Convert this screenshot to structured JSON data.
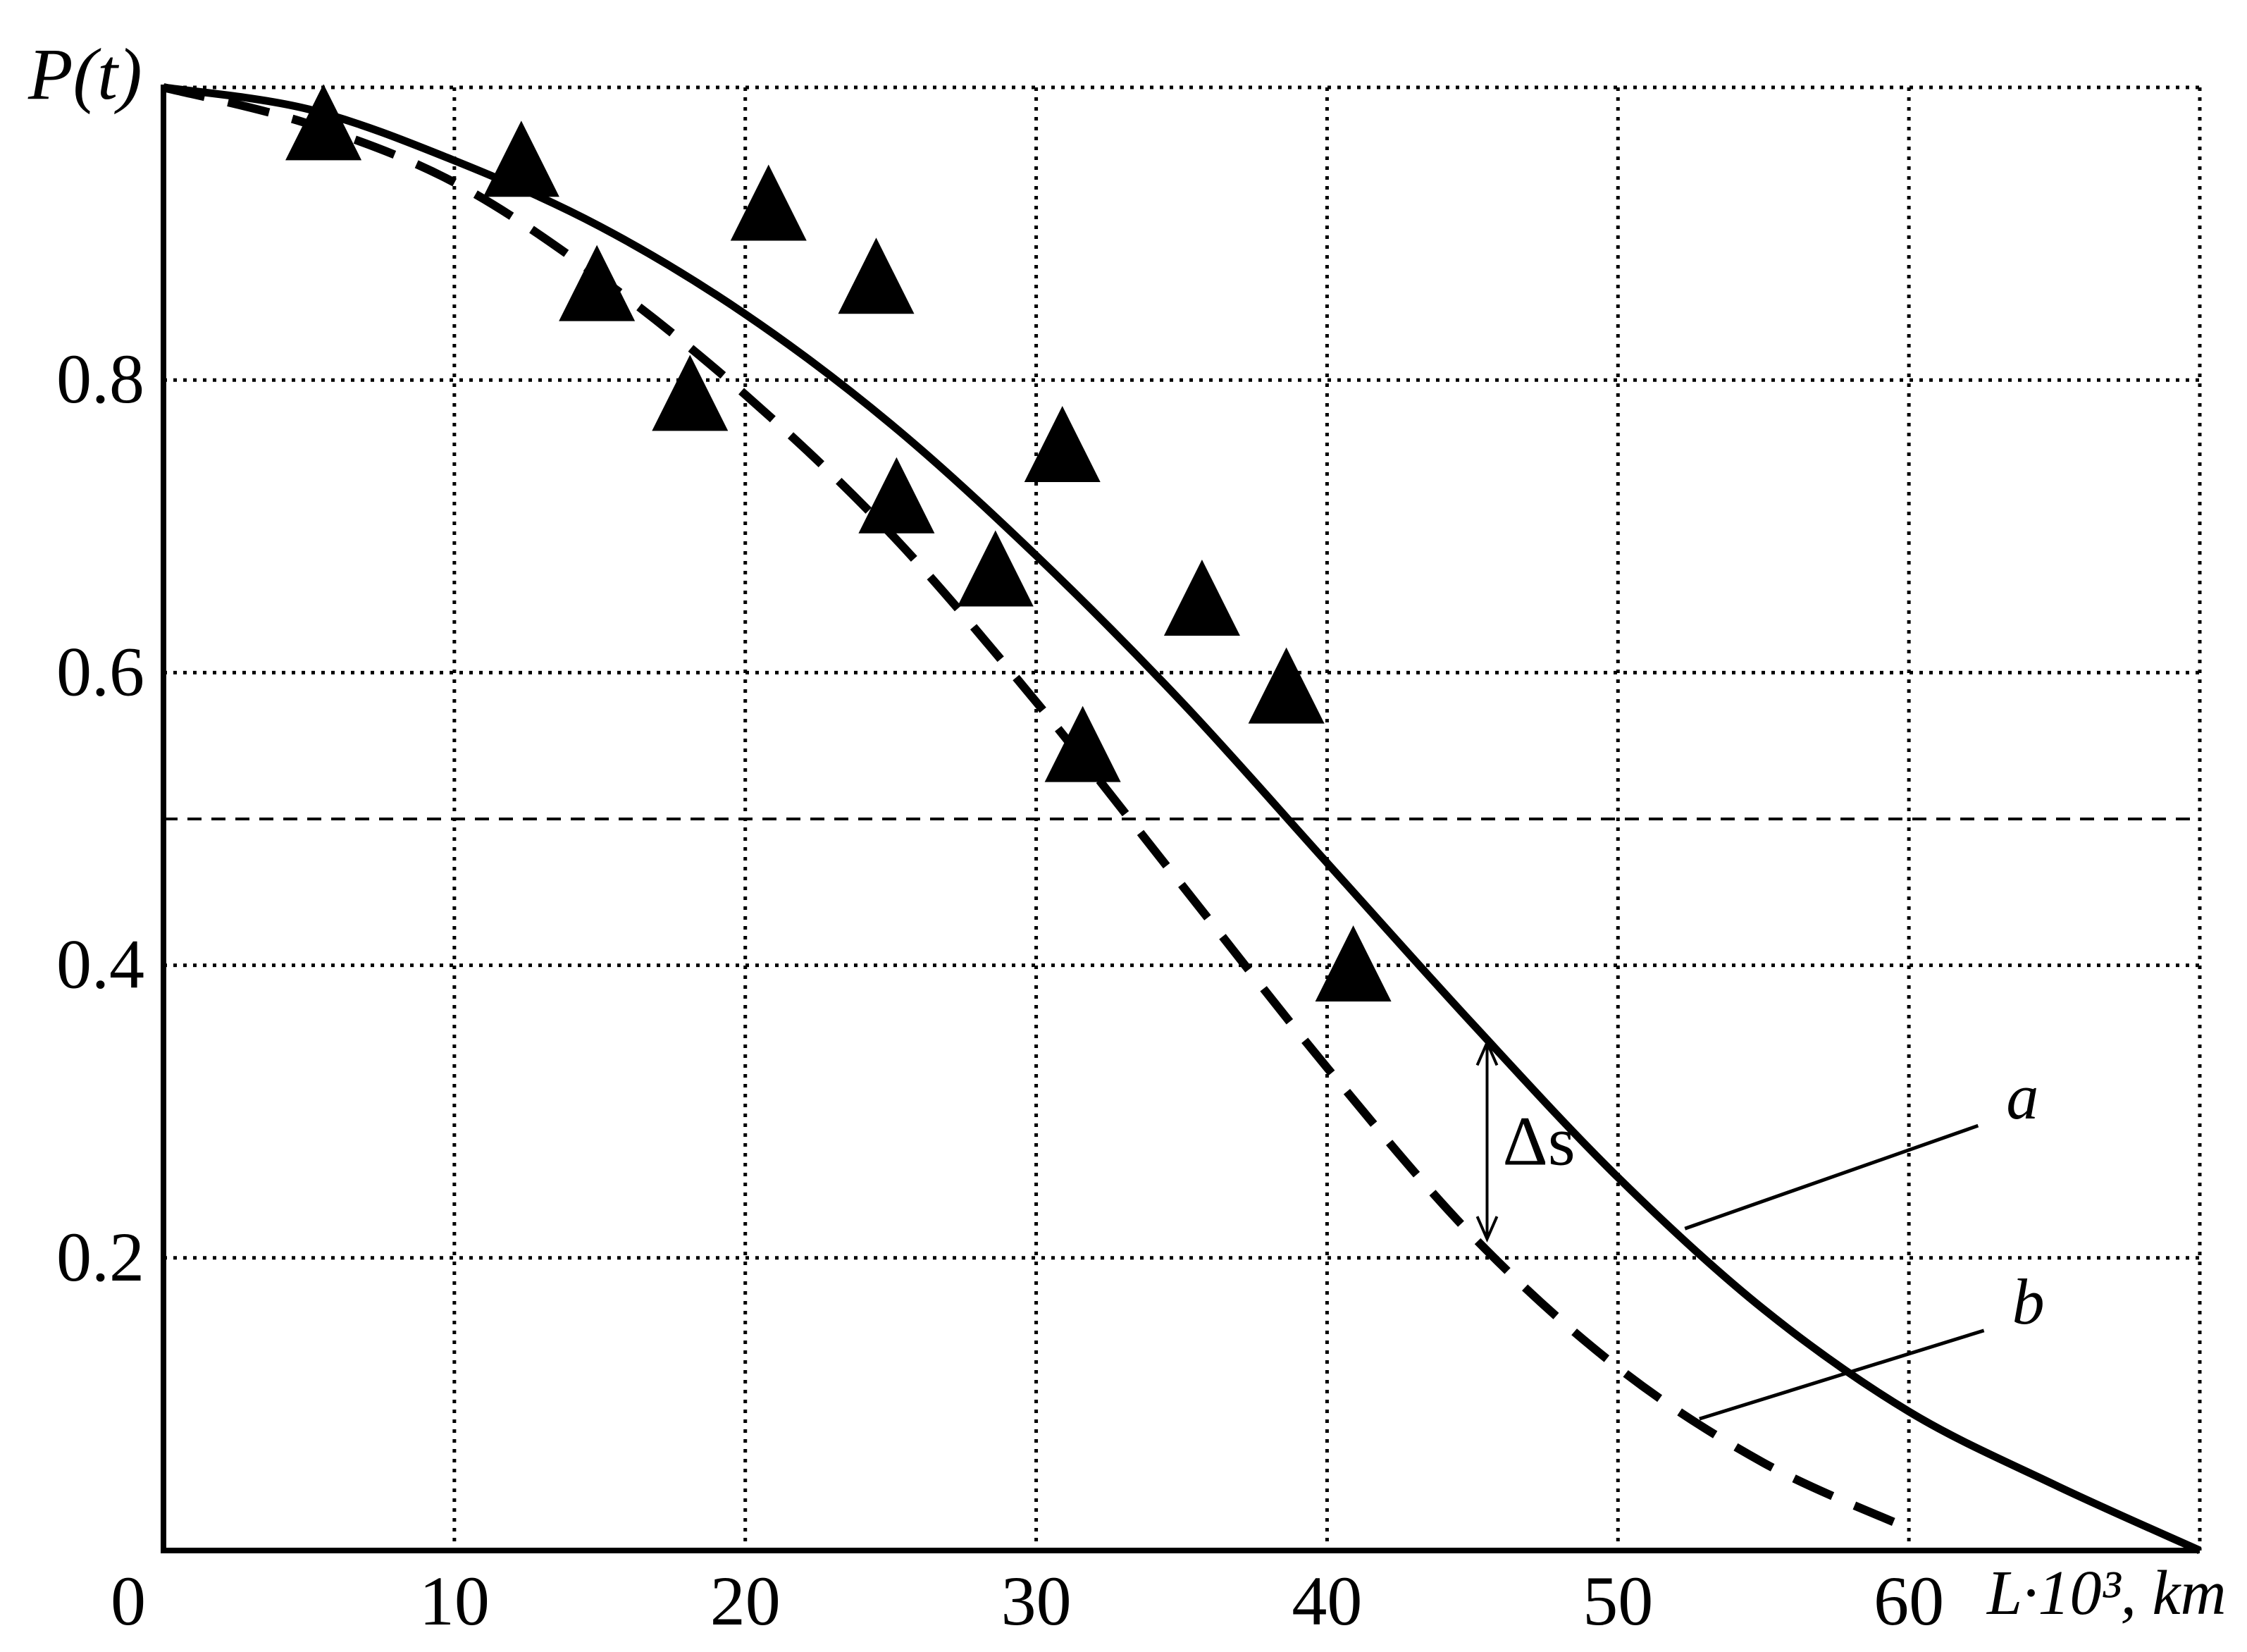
{
  "chart_data": {
    "type": "line",
    "title": "",
    "ylabel": "P(t)",
    "xlabel": "L·10³, km",
    "xlim": [
      0,
      70
    ],
    "ylim": [
      0,
      1.0
    ],
    "x_ticks": [
      0,
      10,
      20,
      30,
      40,
      50,
      60
    ],
    "x_tick_labels": [
      "0",
      "10",
      "20",
      "30",
      "40",
      "50",
      "60"
    ],
    "y_ticks": [
      0.2,
      0.4,
      0.6,
      0.8
    ],
    "y_tick_labels": [
      "0.2",
      "0.4",
      "0.6",
      "0.8"
    ],
    "grid": true,
    "reference_line": {
      "y": 0.5,
      "style": "dashed"
    },
    "series": [
      {
        "name": "a",
        "style": "solid",
        "x": [
          0,
          5,
          10,
          15,
          20,
          25,
          30,
          35,
          40,
          45,
          50,
          55,
          60,
          65,
          70
        ],
        "y": [
          1.0,
          0.985,
          0.95,
          0.905,
          0.845,
          0.77,
          0.68,
          0.58,
          0.47,
          0.36,
          0.255,
          0.165,
          0.095,
          0.045,
          0.0
        ]
      },
      {
        "name": "b",
        "style": "dashed",
        "x": [
          0,
          5,
          10,
          15,
          20,
          25,
          30,
          35,
          40,
          45,
          50,
          55,
          60
        ],
        "y": [
          1.0,
          0.975,
          0.935,
          0.87,
          0.79,
          0.695,
          0.58,
          0.455,
          0.33,
          0.215,
          0.125,
          0.06,
          0.015
        ]
      },
      {
        "name": "",
        "style": "markers",
        "marker": "filled-triangle",
        "x": [
          5.5,
          12.3,
          14.9,
          18.1,
          20.8,
          24.5,
          25.2,
          28.6,
          30.9,
          31.6,
          35.7,
          38.6,
          40.9
        ],
        "y": [
          0.97,
          0.945,
          0.86,
          0.785,
          0.915,
          0.865,
          0.715,
          0.665,
          0.75,
          0.545,
          0.645,
          0.585,
          0.395
        ]
      }
    ],
    "annotations": [
      {
        "text": "Δs",
        "x": 45.5,
        "y_from": 0.35,
        "y_to": 0.21
      },
      {
        "text": "a",
        "series": "a",
        "anchor_x": 52.3,
        "anchor_y": 0.22,
        "label_x": 62.5,
        "label_y": 0.3
      },
      {
        "text": "b",
        "series": "b",
        "anchor_x": 52.8,
        "anchor_y": 0.09,
        "label_x": 62.7,
        "label_y": 0.16
      }
    ]
  }
}
